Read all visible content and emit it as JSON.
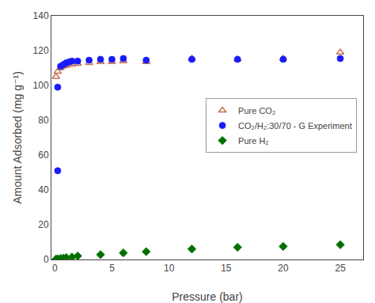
{
  "chart_data": {
    "type": "scatter",
    "x_label": "Pressure (bar)",
    "y_label": "Amount Adsorbed (mg g⁻¹)",
    "series": [
      {
        "name": "Pure CO₂",
        "color": "#c87050",
        "marker": "open_triangle",
        "x": [
          0.1,
          0.25,
          0.5,
          0.75,
          1.0,
          1.25,
          1.5,
          2.0,
          3.0,
          4.0,
          5.0,
          6.0,
          8.0,
          12.0,
          16.0,
          20.0,
          25.0
        ],
        "values": [
          105,
          108,
          110,
          111,
          111.5,
          112,
          112.0,
          112.5,
          113,
          113.5,
          113.5,
          114,
          113.5,
          115.5,
          115,
          115.5,
          119
        ]
      },
      {
        "name": "CO₂/H₂:30/70 - G Experiment",
        "color": "#1a1aff",
        "marker": "circle",
        "x": [
          0.25,
          0.5,
          0.75,
          1.0,
          1.25,
          1.5,
          2.0,
          3.0,
          4.0,
          5.0,
          6.0,
          8.0,
          12.0,
          16.0,
          20.0,
          25.0
        ],
        "values": [
          99,
          111,
          112,
          113,
          113.5,
          114,
          114.0,
          114.5,
          115,
          115,
          115.5,
          114.5,
          115,
          115,
          115,
          115.5
        ]
      },
      {
        "color": "#1a1aff",
        "marker": "circle",
        "x": [
          0.25
        ],
        "values": [
          51
        ]
      },
      {
        "name": "Pure H₂",
        "color": "#007000",
        "marker": "diamond",
        "x": [
          0.1,
          0.25,
          0.5,
          0.75,
          1.0,
          1.5,
          2.0,
          4.0,
          6.0,
          8.0,
          12.0,
          16.0,
          20.0,
          25.0
        ],
        "values": [
          0.2,
          0.4,
          0.6,
          0.8,
          1.1,
          1.4,
          2.0,
          2.8,
          3.8,
          4.5,
          6.0,
          7.0,
          7.5,
          8.5
        ]
      }
    ],
    "xlim": [
      -0.3,
      27
    ],
    "ylim": [
      0,
      140
    ],
    "xticks": [
      0,
      5,
      10,
      15,
      20,
      25
    ],
    "yticks": [
      0,
      20,
      40,
      60,
      80,
      100,
      120,
      140
    ],
    "grid": false,
    "legend": "right"
  }
}
